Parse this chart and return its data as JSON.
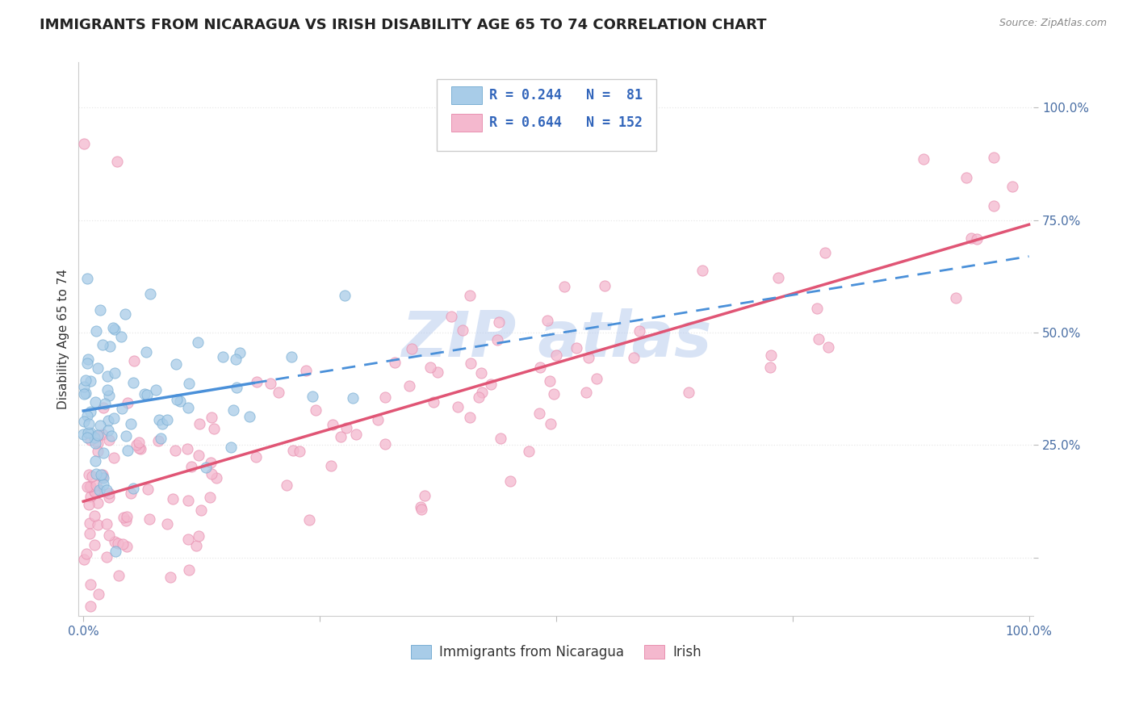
{
  "title": "IMMIGRANTS FROM NICARAGUA VS IRISH DISABILITY AGE 65 TO 74 CORRELATION CHART",
  "source": "Source: ZipAtlas.com",
  "ylabel": "Disability Age 65 to 74",
  "series1_R": 0.244,
  "series1_N": 81,
  "series2_R": 0.644,
  "series2_N": 152,
  "scatter1_color": "#a8cce8",
  "scatter1_edge": "#7aafd4",
  "scatter2_color": "#f4b8ce",
  "scatter2_edge": "#e890b0",
  "line1_color": "#4a90d9",
  "line2_color": "#e05575",
  "watermark_color": "#b8ccee",
  "title_color": "#222222",
  "axis_label_color": "#4a6fa5",
  "grid_color": "#e8e8e8",
  "background_color": "#ffffff",
  "title_fontsize": 13,
  "axis_fontsize": 11,
  "tick_fontsize": 11,
  "legend_R_N_color": "#3366bb",
  "legend_box_color": "#dddddd"
}
